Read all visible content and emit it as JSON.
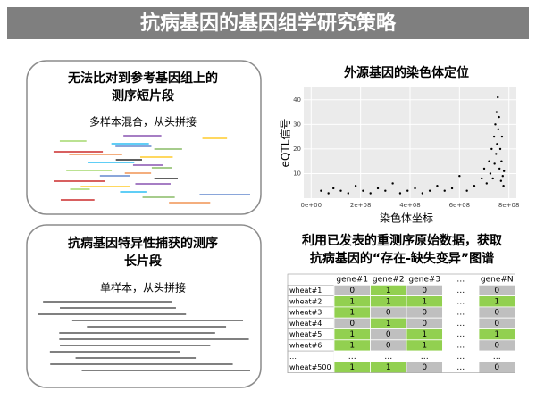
{
  "title": "抗病基因的基因组学研究策略",
  "panels": [
    {
      "title_lines": [
        "无法比对到参考基因组上的",
        "测序短片段"
      ],
      "subtitle": "多样本混合，从头拼接"
    },
    {
      "title_lines": [
        "抗病基因特异性捕获的测序",
        "长片段"
      ],
      "subtitle": "单样本，从头拼接"
    }
  ],
  "chart_data": {
    "type": "scatter",
    "title": "外源基因的染色体定位",
    "x_label": "染色体坐标",
    "y_label": "eQTL信号",
    "x": [
      40000000.0,
      70000000.0,
      90000000.0,
      120000000.0,
      150000000.0,
      180000000.0,
      210000000.0,
      240000000.0,
      270000000.0,
      300000000.0,
      330000000.0,
      360000000.0,
      390000000.0,
      420000000.0,
      450000000.0,
      480000000.0,
      510000000.0,
      540000000.0,
      570000000.0,
      600000000.0,
      630000000.0,
      660000000.0,
      690000000.0,
      700000000.0,
      710000000.0,
      720000000.0,
      725000000.0,
      730000000.0,
      735000000.0,
      740000000.0,
      742000000.0,
      745000000.0,
      748000000.0,
      750000000.0,
      752000000.0,
      755000000.0,
      757000000.0,
      760000000.0,
      762000000.0,
      765000000.0,
      768000000.0,
      770000000.0,
      772000000.0,
      775000000.0,
      778000000.0,
      780000000.0
    ],
    "y": [
      3,
      2,
      4,
      3,
      2,
      5,
      3,
      2,
      4,
      3,
      6,
      2,
      3,
      4,
      2,
      3,
      5,
      3,
      4,
      9,
      3,
      5,
      8,
      12,
      6,
      15,
      10,
      20,
      8,
      25,
      14,
      30,
      18,
      35,
      22,
      41,
      28,
      33,
      12,
      20,
      7,
      15,
      25,
      9,
      5,
      11
    ],
    "color": "#000000",
    "grid": true,
    "xlim": [
      -30000000.0,
      830000000.0
    ],
    "ylim": [
      0,
      45
    ],
    "xticks": [
      {
        "value": 0,
        "label": "0e+00"
      },
      {
        "value": 200000000.0,
        "label": "2e+08"
      },
      {
        "value": 400000000.0,
        "label": "4e+08"
      },
      {
        "value": 600000000.0,
        "label": "6e+08"
      },
      {
        "value": 800000000.0,
        "label": "8e+08"
      }
    ],
    "yticks": [
      10,
      20,
      30,
      40
    ]
  },
  "caption_lines": [
    "利用已发表的重测序原始数据，获取",
    "抗病基因的“存在-缺失变异”图谱"
  ],
  "table": {
    "header": [
      "gene#1",
      "gene#2",
      "gene#3",
      "…",
      "gene#N"
    ],
    "rows": [
      {
        "name": "wheat#1",
        "cells": [
          0,
          1,
          0,
          "…",
          0
        ]
      },
      {
        "name": "wheat#2",
        "cells": [
          1,
          1,
          1,
          "…",
          1
        ]
      },
      {
        "name": "wheat#3",
        "cells": [
          1,
          0,
          0,
          "…",
          0
        ]
      },
      {
        "name": "wheat#4",
        "cells": [
          0,
          1,
          0,
          "…",
          0
        ]
      },
      {
        "name": "wheat#5",
        "cells": [
          1,
          0,
          1,
          "…",
          1
        ]
      },
      {
        "name": "wheat#6",
        "cells": [
          1,
          0,
          1,
          "…",
          0
        ]
      },
      {
        "name": "…",
        "cells": [
          "…",
          "…",
          "…",
          "…",
          "…"
        ]
      },
      {
        "name": "wheat#500",
        "cells": [
          1,
          1,
          0,
          "…",
          0
        ]
      }
    ]
  }
}
